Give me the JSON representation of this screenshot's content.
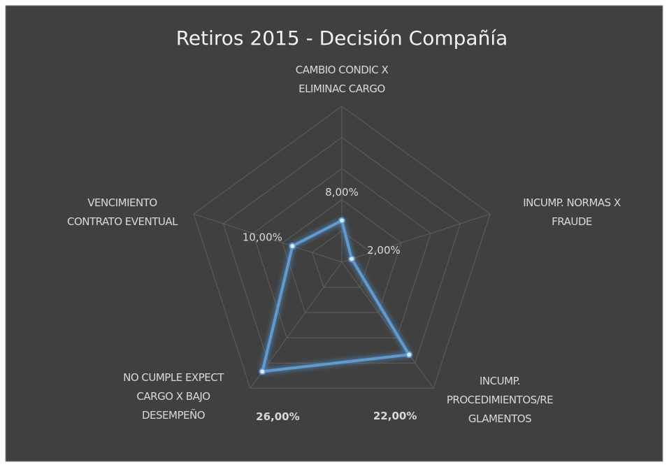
{
  "chart_data": {
    "type": "radar",
    "title": "Retiros 2015 - Decisión Compañía",
    "categories": [
      "CAMBIO CONDIC X\nELIMINAC CARGO",
      "INCUMP. NORMAS X\nFRAUDE",
      "INCUMP.\nPROCEDIMIENTOS/RE\nGLAMENTOS",
      "NO CUMPLE EXPECT\nCARGO X BAJO\nDESEMPEÑO",
      "VENCIMIENTO\nCONTRATO EVENTUAL"
    ],
    "values": [
      8,
      2,
      22,
      26,
      10
    ],
    "value_labels": [
      "8,00%",
      "2,00%",
      "22,00%",
      "26,00%",
      "10,00%"
    ],
    "color": "#5b9bd5",
    "ylim": [
      0,
      30
    ],
    "yticks": [
      0,
      6,
      12,
      18,
      24,
      30
    ],
    "grid": true
  }
}
